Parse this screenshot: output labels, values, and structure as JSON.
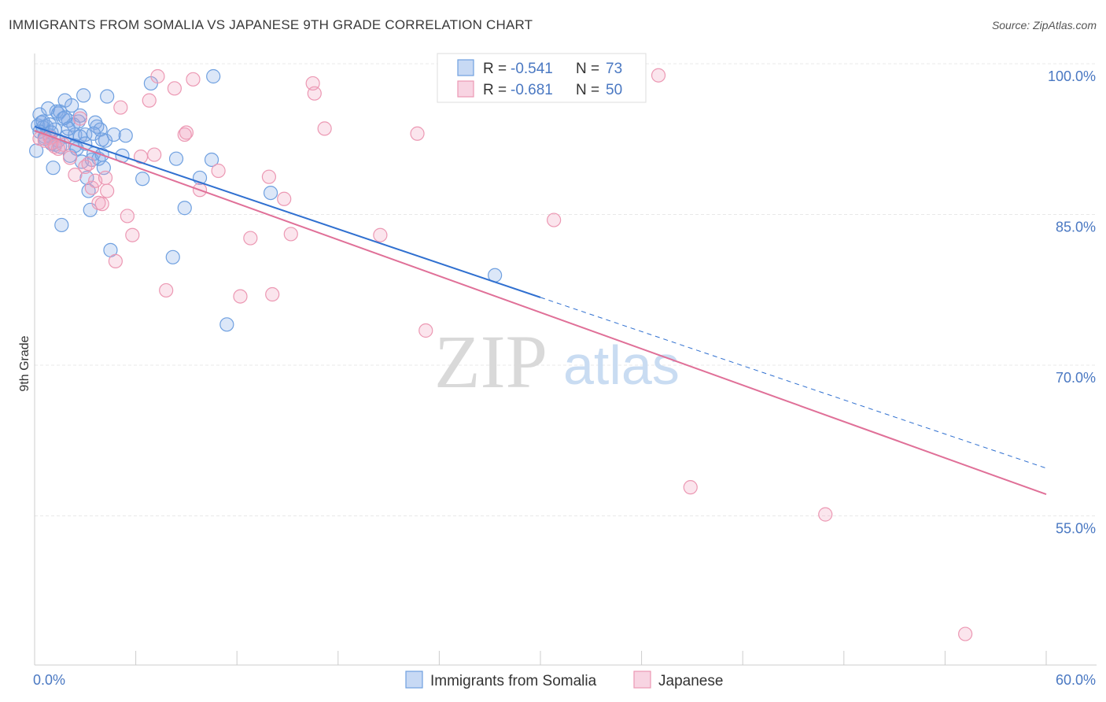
{
  "title": "IMMIGRANTS FROM SOMALIA VS JAPANESE 9TH GRADE CORRELATION CHART",
  "source": "Source: ZipAtlas.com",
  "watermark": {
    "zip": "ZIP",
    "atlas": "atlas"
  },
  "legend_top": [
    {
      "r_label": "R =",
      "r_value": "-0.541",
      "n_label": "N =",
      "n_value": "73"
    },
    {
      "r_label": "R =",
      "r_value": "-0.681",
      "n_label": "N =",
      "n_value": "50"
    }
  ],
  "legend_bottom": [
    "Immigrants from Somalia",
    "Japanese"
  ],
  "chart_data": {
    "type": "scatter",
    "title": "IMMIGRANTS FROM SOMALIA VS JAPANESE 9TH GRADE CORRELATION CHART",
    "xlabel": "",
    "ylabel": "9th Grade",
    "xlim": [
      0,
      60
    ],
    "ylim": [
      42,
      101
    ],
    "x_tick_labels": [
      {
        "value": 0,
        "label": "0.0%"
      },
      {
        "value": 60,
        "label": "60.0%"
      }
    ],
    "y_tick_labels": [
      {
        "value": 100,
        "label": "100.0%"
      },
      {
        "value": 85,
        "label": "85.0%"
      },
      {
        "value": 70,
        "label": "70.0%"
      },
      {
        "value": 55,
        "label": "55.0%"
      }
    ],
    "grid": true,
    "legend_placement": "bottom",
    "series": [
      {
        "name": "Immigrants from Somalia",
        "color": "#6fa0e0",
        "fill": "rgba(130,170,230,0.28)",
        "r": "-0.541",
        "n": "73",
        "trend": {
          "x0": 0,
          "y0": 95.0,
          "x1": 30,
          "y1": 78.0,
          "dash_x1": 60,
          "dash_y1": 61.0,
          "color": "#3070d0"
        },
        "points": [
          [
            0.1,
            92.6
          ],
          [
            0.2,
            95.1
          ],
          [
            0.3,
            96.2
          ],
          [
            0.4,
            95.4
          ],
          [
            0.5,
            94.9
          ],
          [
            0.6,
            94.0
          ],
          [
            0.7,
            95.0
          ],
          [
            0.8,
            96.8
          ],
          [
            0.9,
            94.1
          ],
          [
            1.0,
            93.3
          ],
          [
            1.1,
            90.9
          ],
          [
            1.2,
            93.2
          ],
          [
            1.3,
            96.5
          ],
          [
            1.4,
            96.3
          ],
          [
            1.5,
            96.5
          ],
          [
            1.6,
            85.2
          ],
          [
            1.7,
            95.8
          ],
          [
            1.8,
            97.6
          ],
          [
            1.9,
            94.0
          ],
          [
            2.0,
            95.6
          ],
          [
            2.1,
            92.1
          ],
          [
            2.2,
            97.1
          ],
          [
            2.3,
            95.2
          ],
          [
            2.4,
            94.2
          ],
          [
            2.5,
            92.8
          ],
          [
            2.6,
            95.5
          ],
          [
            2.7,
            94.0
          ],
          [
            2.8,
            91.5
          ],
          [
            2.9,
            98.1
          ],
          [
            3.0,
            94.2
          ],
          [
            3.1,
            89.9
          ],
          [
            3.2,
            88.6
          ],
          [
            3.3,
            86.7
          ],
          [
            3.4,
            91.7
          ],
          [
            3.5,
            92.3
          ],
          [
            3.6,
            95.4
          ],
          [
            3.7,
            95.0
          ],
          [
            3.8,
            91.8
          ],
          [
            3.9,
            94.7
          ],
          [
            4.0,
            92.2
          ],
          [
            4.1,
            90.9
          ],
          [
            4.2,
            93.6
          ],
          [
            4.3,
            98.0
          ],
          [
            4.5,
            82.7
          ],
          [
            4.7,
            94.2
          ],
          [
            5.2,
            92.1
          ],
          [
            5.4,
            94.1
          ],
          [
            6.4,
            89.8
          ],
          [
            6.9,
            99.3
          ],
          [
            8.2,
            82.0
          ],
          [
            8.4,
            91.8
          ],
          [
            8.9,
            86.9
          ],
          [
            9.8,
            89.9
          ],
          [
            10.5,
            91.7
          ],
          [
            10.6,
            100.0
          ],
          [
            11.4,
            75.3
          ],
          [
            14.0,
            88.4
          ],
          [
            27.3,
            80.2
          ],
          [
            0.3,
            94.5
          ],
          [
            0.6,
            93.8
          ],
          [
            0.9,
            95.2
          ],
          [
            1.2,
            94.7
          ],
          [
            1.5,
            93.0
          ],
          [
            1.8,
            95.9
          ],
          [
            2.4,
            93.1
          ],
          [
            2.7,
            96.1
          ],
          [
            3.5,
            94.3
          ],
          [
            4.0,
            93.7
          ],
          [
            0.5,
            95.5
          ],
          [
            1.0,
            94.4
          ],
          [
            1.4,
            93.6
          ],
          [
            2.0,
            94.8
          ],
          [
            3.0,
            93.3
          ]
        ]
      },
      {
        "name": "Japanese",
        "color": "#ec98b3",
        "fill": "rgba(240,160,190,0.28)",
        "r": "-0.681",
        "n": "50",
        "trend": {
          "x0": 0,
          "y0": 94.6,
          "x1": 60,
          "y1": 58.4,
          "color": "#e07098"
        },
        "points": [
          [
            0.3,
            93.8
          ],
          [
            0.6,
            93.6
          ],
          [
            0.9,
            93.9
          ],
          [
            1.0,
            93.4
          ],
          [
            1.2,
            93.0
          ],
          [
            1.4,
            92.8
          ],
          [
            1.7,
            93.2
          ],
          [
            2.1,
            91.9
          ],
          [
            2.4,
            90.2
          ],
          [
            2.7,
            95.8
          ],
          [
            3.0,
            91.0
          ],
          [
            3.2,
            91.3
          ],
          [
            3.4,
            88.9
          ],
          [
            3.6,
            89.6
          ],
          [
            3.8,
            87.4
          ],
          [
            4.0,
            87.3
          ],
          [
            4.2,
            89.9
          ],
          [
            4.3,
            88.6
          ],
          [
            4.8,
            81.6
          ],
          [
            5.1,
            96.9
          ],
          [
            5.5,
            86.1
          ],
          [
            5.8,
            84.2
          ],
          [
            6.3,
            92.0
          ],
          [
            6.8,
            97.6
          ],
          [
            7.1,
            92.2
          ],
          [
            7.3,
            100.0
          ],
          [
            7.8,
            78.7
          ],
          [
            8.3,
            98.8
          ],
          [
            8.9,
            94.2
          ],
          [
            9.0,
            94.4
          ],
          [
            9.4,
            99.7
          ],
          [
            9.8,
            88.7
          ],
          [
            10.9,
            90.6
          ],
          [
            12.2,
            78.1
          ],
          [
            12.8,
            83.9
          ],
          [
            13.9,
            90.0
          ],
          [
            14.1,
            78.3
          ],
          [
            14.8,
            87.8
          ],
          [
            15.2,
            84.3
          ],
          [
            16.5,
            99.3
          ],
          [
            16.6,
            98.3
          ],
          [
            17.2,
            94.8
          ],
          [
            20.5,
            84.2
          ],
          [
            22.7,
            94.3
          ],
          [
            23.2,
            74.7
          ],
          [
            30.8,
            85.7
          ],
          [
            37.0,
            100.1
          ],
          [
            38.9,
            59.1
          ],
          [
            46.9,
            56.4
          ],
          [
            55.2,
            44.5
          ]
        ]
      }
    ]
  }
}
